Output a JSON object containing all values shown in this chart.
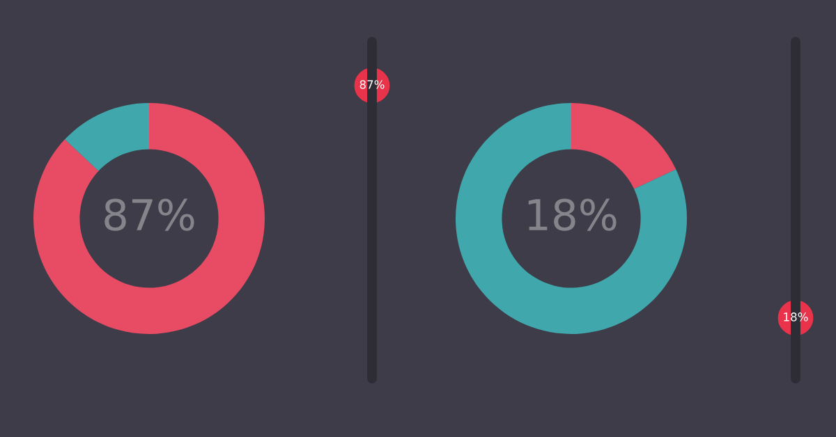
{
  "chart_data": [
    {
      "type": "donut",
      "categories": [
        null,
        null
      ],
      "values": [
        87,
        13
      ],
      "colors": [
        "#e84c65",
        "#40a8ac"
      ],
      "annotations": [
        "87%",
        "87%"
      ]
    },
    {
      "type": "donut",
      "categories": [
        null,
        null
      ],
      "values": [
        18,
        82
      ],
      "colors": [
        "#e84c65",
        "#40a8ac"
      ],
      "annotations": [
        "18%",
        "18%"
      ]
    }
  ]
}
